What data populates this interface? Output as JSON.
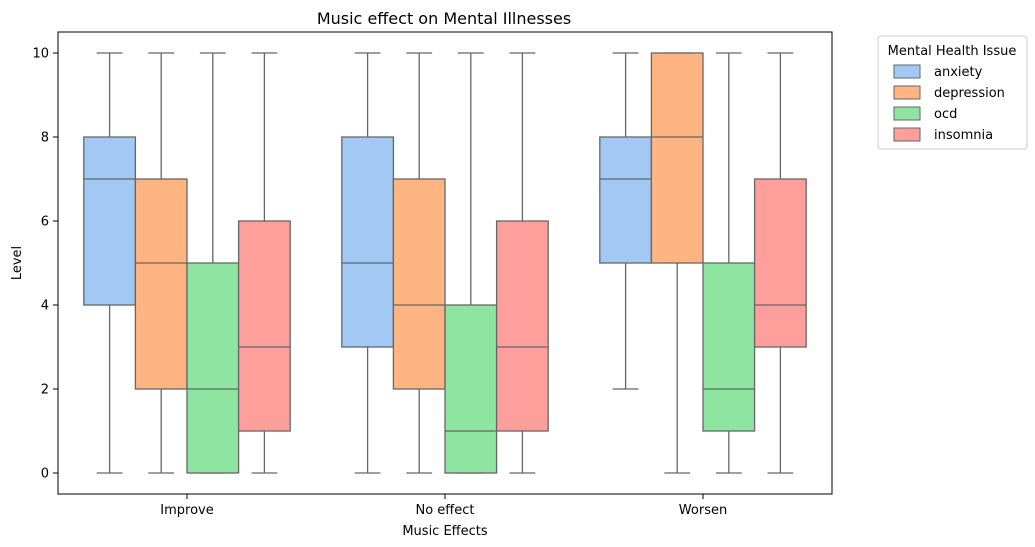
{
  "chart_data": {
    "type": "box",
    "title": "Music effect on Mental Illnesses",
    "xlabel": "Music Effects",
    "ylabel": "Level",
    "ylim": [
      -0.5,
      10.5
    ],
    "yticks": [
      "0",
      "2",
      "4",
      "6",
      "8",
      "10"
    ],
    "categories": [
      "Improve",
      "No effect",
      "Worsen"
    ],
    "grid": false,
    "legend": {
      "title": "Mental Health Issue",
      "placement": "outside-top-right"
    },
    "series": [
      {
        "name": "anxiety",
        "color": "#a1c9f4",
        "boxes": [
          {
            "min": 0,
            "q1": 4,
            "median": 7,
            "q3": 8,
            "max": 10
          },
          {
            "min": 0,
            "q1": 3,
            "median": 5,
            "q3": 8,
            "max": 10
          },
          {
            "min": 2,
            "q1": 5,
            "median": 7,
            "q3": 8,
            "max": 10
          }
        ]
      },
      {
        "name": "depression",
        "color": "#ffb482",
        "boxes": [
          {
            "min": 0,
            "q1": 2,
            "median": 5,
            "q3": 7,
            "max": 10
          },
          {
            "min": 0,
            "q1": 2,
            "median": 4,
            "q3": 7,
            "max": 10
          },
          {
            "min": 0,
            "q1": 5,
            "median": 8,
            "q3": 10,
            "max": 10
          }
        ]
      },
      {
        "name": "ocd",
        "color": "#8de5a1",
        "boxes": [
          {
            "min": 0,
            "q1": 0,
            "median": 2,
            "q3": 5,
            "max": 10
          },
          {
            "min": 0,
            "q1": 0,
            "median": 1,
            "q3": 4,
            "max": 10
          },
          {
            "min": 0,
            "q1": 1,
            "median": 2,
            "q3": 5,
            "max": 10
          }
        ]
      },
      {
        "name": "insomnia",
        "color": "#ff9f9b",
        "boxes": [
          {
            "min": 0,
            "q1": 1,
            "median": 3,
            "q3": 6,
            "max": 10
          },
          {
            "min": 0,
            "q1": 1,
            "median": 3,
            "q3": 6,
            "max": 10
          },
          {
            "min": 0,
            "q1": 3,
            "median": 4,
            "q3": 7,
            "max": 10
          }
        ]
      }
    ]
  }
}
